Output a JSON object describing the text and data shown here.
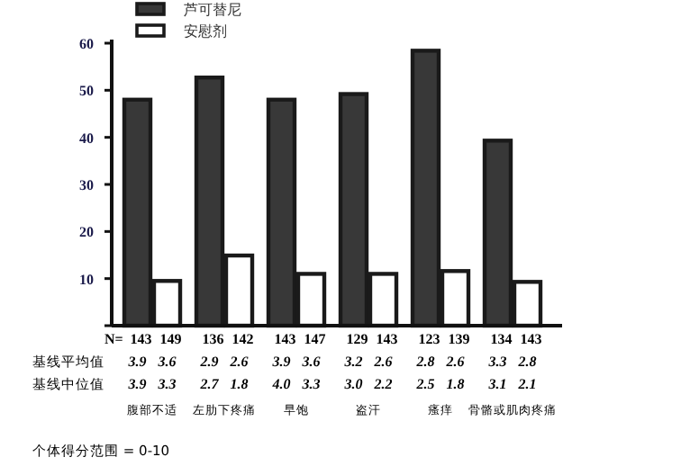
{
  "chart_data": {
    "type": "bar",
    "categories": [
      "腹部不适",
      "左肋下疼痛",
      "早饱",
      "盗汗",
      "瘙痒",
      "骨骼或肌肉疼痛"
    ],
    "series": [
      {
        "name": "芦可替尼",
        "color": "#383838",
        "values": [
          48,
          52.7,
          48,
          49.2,
          58.4,
          39.3
        ]
      },
      {
        "name": "安慰剂",
        "color": "#ffffff",
        "values": [
          9.5,
          14.9,
          11,
          11,
          11.6,
          9.3
        ]
      }
    ],
    "ylim": [
      0,
      60
    ],
    "yticks": [
      {
        "value": 0,
        "label": null
      },
      10,
      20,
      30,
      40,
      50,
      60
    ],
    "grid": false,
    "legend": "top left",
    "annotations": [
      "N= 143 149 136 142 143 147 129 143 123 139 134 143",
      "基线平均值 3.9 3.6 2.9 2.6 3.9 3.6 3.2 2.6 2.8 2.6 3.3 2.8",
      "基线中位值 3.9 3.3 2.7 1.8 4.0 3.3 3.0 2.2 2.5 1.8 3.1 2.1",
      "个体得分范围 = 0-10"
    ]
  }
}
